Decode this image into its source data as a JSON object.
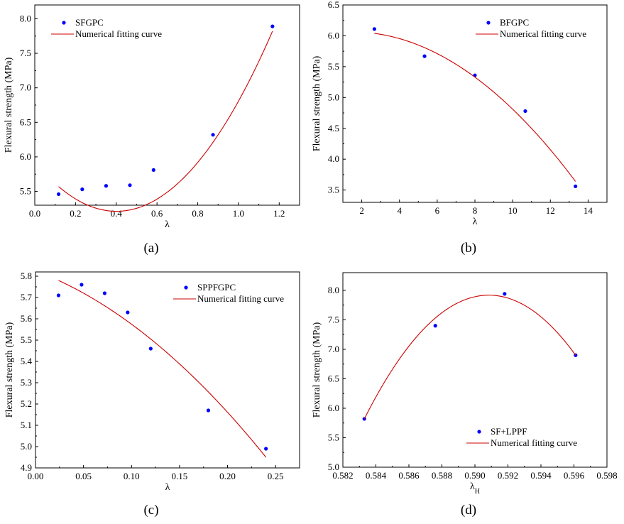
{
  "chart_data": [
    {
      "type": "scatter",
      "panel_label": "(a)",
      "xlabel": "λ",
      "ylabel": "Flexural strength (MPa)",
      "xlim": [
        0.0,
        1.3
      ],
      "ylim": [
        5.3,
        8.2
      ],
      "xticks": [
        0.0,
        0.2,
        0.4,
        0.6,
        0.8,
        1.0,
        1.2
      ],
      "xtick_labels": [
        "0.0",
        "0.2",
        "0.4",
        "0.6",
        "0.8",
        "1.0",
        "1.2"
      ],
      "yticks": [
        5.5,
        6.0,
        6.5,
        7.0,
        7.5,
        8.0
      ],
      "ytick_labels": [
        "5.5",
        "6.0",
        "6.5",
        "7.0",
        "7.5",
        "8.0"
      ],
      "legend_position": "top-left",
      "legend": [
        "SFGPC",
        "Numerical fitting curve"
      ],
      "series": [
        {
          "name": "SFGPC",
          "kind": "points",
          "x": [
            0.117,
            0.233,
            0.35,
            0.467,
            0.583,
            0.875,
            1.167
          ],
          "y": [
            5.46,
            5.53,
            5.58,
            5.59,
            5.81,
            6.32,
            7.89
          ],
          "color": "#0000ff"
        },
        {
          "name": "Numerical fitting curve",
          "kind": "curve",
          "fit": "quadratic",
          "x_range": [
            0.117,
            1.167
          ],
          "y_anchors": [
            5.57,
            5.47,
            7.82
          ],
          "color": "#cc0000"
        }
      ]
    },
    {
      "type": "scatter",
      "panel_label": "(b)",
      "xlabel": "λ",
      "ylabel": "Flexural strength (MPa)",
      "xlim": [
        1.0,
        15.0
      ],
      "ylim": [
        3.3,
        6.5
      ],
      "xticks": [
        2,
        4,
        6,
        8,
        10,
        12,
        14
      ],
      "xtick_labels": [
        "2",
        "4",
        "6",
        "8",
        "10",
        "12",
        "14"
      ],
      "yticks": [
        3.5,
        4.0,
        4.5,
        5.0,
        5.5,
        6.0,
        6.5
      ],
      "ytick_labels": [
        "3.5",
        "4.0",
        "4.5",
        "5.0",
        "5.5",
        "6.0",
        "6.5"
      ],
      "legend_position": "top-right",
      "legend": [
        "BFGPC",
        "Numerical fitting curve"
      ],
      "series": [
        {
          "name": "BFGPC",
          "kind": "points",
          "x": [
            2.67,
            5.33,
            8.0,
            10.67,
            13.33
          ],
          "y": [
            6.11,
            5.67,
            5.36,
            4.78,
            3.56
          ],
          "color": "#0000ff"
        },
        {
          "name": "Numerical fitting curve",
          "kind": "curve",
          "fit": "quadratic",
          "x_range": [
            2.67,
            13.33
          ],
          "y_anchors": [
            6.04,
            5.33,
            3.64
          ],
          "color": "#cc0000"
        }
      ]
    },
    {
      "type": "scatter",
      "panel_label": "(c)",
      "xlabel": "λ",
      "ylabel": "Flexural strength (MPa)",
      "xlim": [
        0.0,
        0.275
      ],
      "ylim": [
        4.9,
        5.82
      ],
      "xticks": [
        0.0,
        0.05,
        0.1,
        0.15,
        0.2,
        0.25
      ],
      "xtick_labels": [
        "0.00",
        "0.05",
        "0.10",
        "0.15",
        "0.20",
        "0.25"
      ],
      "yticks": [
        4.9,
        5.0,
        5.1,
        5.2,
        5.3,
        5.4,
        5.5,
        5.6,
        5.7,
        5.8
      ],
      "ytick_labels": [
        "4.9",
        "5.0",
        "5.1",
        "5.2",
        "5.3",
        "5.4",
        "5.5",
        "5.6",
        "5.7",
        "5.8"
      ],
      "legend_position": "top-right",
      "legend": [
        "SPPFGPC",
        "Numerical fitting curve"
      ],
      "series": [
        {
          "name": "SPPFGPC",
          "kind": "points",
          "x": [
            0.024,
            0.048,
            0.072,
            0.096,
            0.12,
            0.18,
            0.24
          ],
          "y": [
            5.71,
            5.76,
            5.72,
            5.63,
            5.46,
            5.17,
            4.99
          ],
          "color": "#0000ff"
        },
        {
          "name": "Numerical fitting curve",
          "kind": "curve",
          "fit": "quadratic",
          "x_range": [
            0.024,
            0.24
          ],
          "y_anchors": [
            5.78,
            5.46,
            4.95
          ],
          "color": "#cc0000"
        }
      ]
    },
    {
      "type": "scatter",
      "panel_label": "(d)",
      "xlabel": "λ",
      "xlabel_subscript": "H",
      "ylabel": "Flexural strength (MPa)",
      "xlim": [
        0.582,
        0.598
      ],
      "ylim": [
        5.0,
        8.3
      ],
      "xticks": [
        0.582,
        0.584,
        0.586,
        0.588,
        0.59,
        0.592,
        0.594,
        0.596,
        0.598
      ],
      "xtick_labels": [
        "0.582",
        "0.584",
        "0.586",
        "0.588",
        "0.590",
        "0.592",
        "0.594",
        "0.596",
        "0.598"
      ],
      "yticks": [
        5.0,
        5.5,
        6.0,
        6.5,
        7.0,
        7.5,
        8.0
      ],
      "ytick_labels": [
        "5.0",
        "5.5",
        "6.0",
        "6.5",
        "7.0",
        "7.5",
        "8.0"
      ],
      "legend_position": "bottom-right",
      "legend": [
        "SF+LPPF",
        "Numerical fitting curve"
      ],
      "series": [
        {
          "name": "SF+LPPF",
          "kind": "points",
          "x": [
            0.5833,
            0.5876,
            0.5918,
            0.5961
          ],
          "y": [
            5.82,
            7.4,
            7.94,
            6.9
          ],
          "color": "#0000ff"
        },
        {
          "name": "Numerical fitting curve",
          "kind": "curve",
          "fit": "quadratic",
          "x_range": [
            0.5833,
            0.5961
          ],
          "y_anchors": [
            5.82,
            7.87,
            6.9
          ],
          "color": "#cc0000"
        }
      ]
    }
  ]
}
